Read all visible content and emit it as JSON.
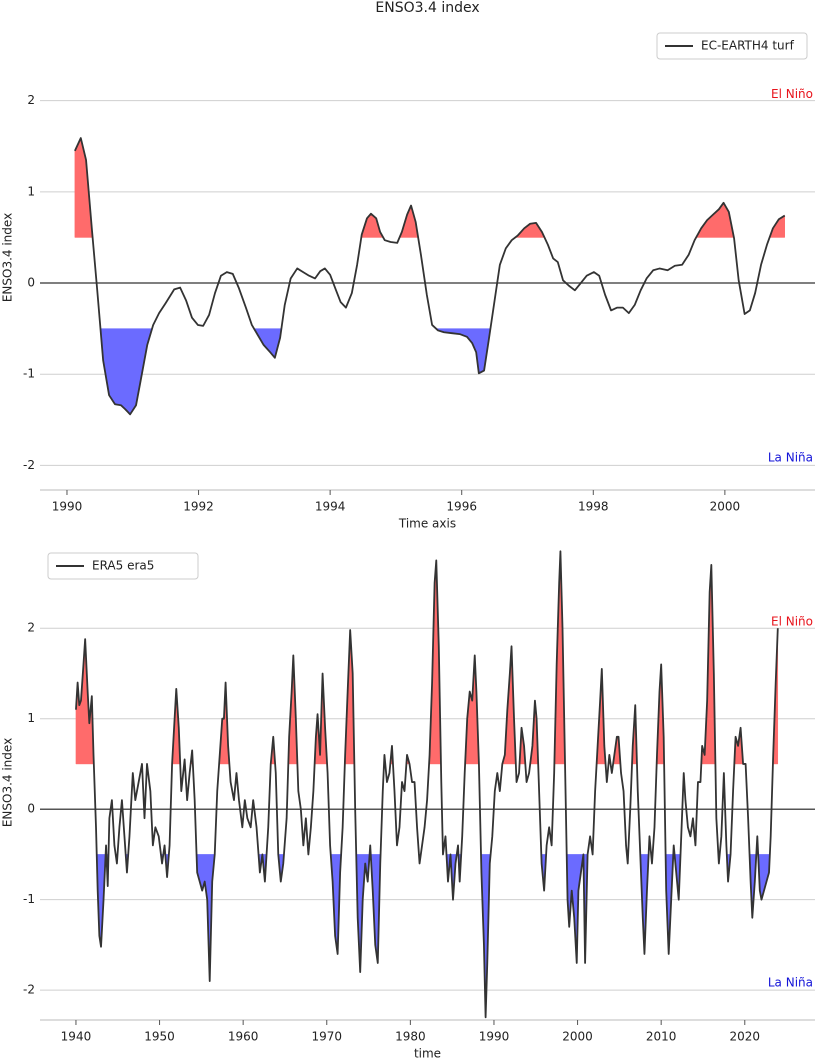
{
  "chart_data": [
    {
      "type": "line",
      "title": "ENSO3.4 index",
      "xlabel": "Time axis",
      "ylabel": "ENSO3.4 index",
      "xlim": [
        1989.59,
        2001.37
      ],
      "ylim": [
        -2.27,
        2.83
      ],
      "xticks": [
        1990,
        1992,
        1994,
        1996,
        1998,
        2000
      ],
      "yticks": [
        -2,
        -1,
        0,
        1,
        2
      ],
      "grid": true,
      "legend": "upper right",
      "el_nino_threshold": 0.5,
      "la_nina_threshold": -0.5,
      "el_nino_color": "#ff6b6b",
      "la_nina_color": "#6b6bff",
      "annotations": [
        {
          "text": "El Niño",
          "color": "#e8141c"
        },
        {
          "text": "La Niña",
          "color": "#1414d8"
        }
      ],
      "x": [
        1990.12,
        1990.21,
        1990.29,
        1990.38,
        1990.46,
        1990.55,
        1990.64,
        1990.73,
        1990.82,
        1990.88,
        1990.96,
        1991.05,
        1991.12,
        1991.22,
        1991.31,
        1991.4,
        1991.5,
        1991.63,
        1991.72,
        1991.81,
        1991.9,
        1991.99,
        1992.07,
        1992.16,
        1992.25,
        1992.34,
        1992.43,
        1992.52,
        1992.61,
        1992.72,
        1992.81,
        1992.9,
        1992.99,
        1993.09,
        1993.16,
        1993.24,
        1993.31,
        1993.4,
        1993.5,
        1993.59,
        1993.68,
        1993.77,
        1993.85,
        1993.92,
        1994.0,
        1994.09,
        1994.16,
        1994.24,
        1994.33,
        1994.41,
        1994.48,
        1994.56,
        1994.62,
        1994.7,
        1994.76,
        1994.83,
        1994.92,
        1995.02,
        1995.09,
        1995.17,
        1995.23,
        1995.3,
        1995.38,
        1995.47,
        1995.55,
        1995.64,
        1995.73,
        1995.85,
        1995.97,
        1996.08,
        1996.16,
        1996.22,
        1996.26,
        1996.34,
        1996.41,
        1996.5,
        1996.58,
        1996.67,
        1996.76,
        1996.85,
        1996.95,
        1997.04,
        1997.13,
        1997.22,
        1997.31,
        1997.39,
        1997.46,
        1997.54,
        1997.63,
        1997.72,
        1997.81,
        1997.9,
        1998.01,
        1998.09,
        1998.18,
        1998.27,
        1998.36,
        1998.45,
        1998.54,
        1998.63,
        1998.72,
        1998.81,
        1998.91,
        1999.01,
        1999.13,
        1999.24,
        1999.35,
        1999.45,
        1999.54,
        1999.64,
        1999.73,
        1999.82,
        1999.91,
        1999.98,
        2000.06,
        2000.14,
        2000.21,
        2000.3,
        2000.38,
        2000.46,
        2000.55,
        2000.64,
        2000.73,
        2000.82,
        2000.91
      ],
      "series": [
        {
          "name": "EC-EARTH4 turf",
          "color": "#333333",
          "values": [
            1.45,
            1.59,
            1.35,
            0.58,
            -0.08,
            -0.85,
            -1.23,
            -1.33,
            -1.34,
            -1.38,
            -1.44,
            -1.34,
            -1.07,
            -0.68,
            -0.46,
            -0.33,
            -0.22,
            -0.07,
            -0.05,
            -0.19,
            -0.38,
            -0.46,
            -0.47,
            -0.35,
            -0.11,
            0.08,
            0.12,
            0.1,
            -0.05,
            -0.27,
            -0.46,
            -0.57,
            -0.68,
            -0.76,
            -0.82,
            -0.6,
            -0.24,
            0.05,
            0.16,
            0.12,
            0.08,
            0.05,
            0.13,
            0.16,
            0.09,
            -0.08,
            -0.21,
            -0.27,
            -0.11,
            0.2,
            0.53,
            0.71,
            0.76,
            0.71,
            0.56,
            0.47,
            0.45,
            0.44,
            0.56,
            0.75,
            0.85,
            0.67,
            0.31,
            -0.13,
            -0.46,
            -0.52,
            -0.54,
            -0.55,
            -0.56,
            -0.59,
            -0.66,
            -0.76,
            -0.99,
            -0.96,
            -0.63,
            -0.19,
            0.2,
            0.38,
            0.47,
            0.52,
            0.6,
            0.65,
            0.66,
            0.56,
            0.42,
            0.27,
            0.23,
            0.03,
            -0.03,
            -0.08,
            0.0,
            0.08,
            0.12,
            0.08,
            -0.13,
            -0.3,
            -0.27,
            -0.27,
            -0.33,
            -0.24,
            -0.08,
            0.05,
            0.14,
            0.16,
            0.14,
            0.19,
            0.2,
            0.31,
            0.47,
            0.6,
            0.69,
            0.75,
            0.81,
            0.88,
            0.78,
            0.49,
            0.03,
            -0.34,
            -0.3,
            -0.11,
            0.2,
            0.42,
            0.6,
            0.7,
            0.74
          ]
        }
      ]
    },
    {
      "type": "line",
      "xlabel": "time",
      "ylabel": "ENSO3.4 index",
      "xlim": [
        1935.7,
        2028.4
      ],
      "ylim": [
        -2.33,
        2.92
      ],
      "xticks": [
        1940,
        1950,
        1960,
        1970,
        1980,
        1990,
        2000,
        2010,
        2020
      ],
      "yticks": [
        -2,
        -1,
        0,
        1,
        2
      ],
      "grid": true,
      "legend": "upper left",
      "el_nino_threshold": 0.5,
      "la_nina_threshold": -0.5,
      "el_nino_color": "#ff6b6b",
      "la_nina_color": "#6b6bff",
      "annotations": [
        {
          "text": "El Niño",
          "color": "#e8141c"
        },
        {
          "text": "La Niña",
          "color": "#1414d8"
        }
      ],
      "x": [
        1940.0,
        1940.2,
        1940.4,
        1940.6,
        1940.9,
        1941.1,
        1941.4,
        1941.6,
        1941.9,
        1942.1,
        1942.4,
        1942.6,
        1942.8,
        1943.0,
        1943.3,
        1943.6,
        1943.8,
        1944.0,
        1944.3,
        1944.6,
        1944.9,
        1945.2,
        1945.5,
        1945.8,
        1946.1,
        1946.4,
        1946.8,
        1947.1,
        1947.5,
        1947.9,
        1948.2,
        1948.5,
        1948.9,
        1949.2,
        1949.5,
        1949.9,
        1950.3,
        1950.6,
        1950.9,
        1951.2,
        1951.5,
        1951.8,
        1952.0,
        1952.3,
        1952.6,
        1953.0,
        1953.3,
        1953.6,
        1953.9,
        1954.2,
        1954.5,
        1954.8,
        1955.1,
        1955.4,
        1955.7,
        1956.0,
        1956.3,
        1956.6,
        1956.9,
        1957.2,
        1957.5,
        1957.7,
        1957.9,
        1958.2,
        1958.5,
        1958.9,
        1959.2,
        1959.5,
        1959.9,
        1960.2,
        1960.5,
        1960.9,
        1961.2,
        1961.6,
        1962.0,
        1962.3,
        1962.6,
        1963.0,
        1963.3,
        1963.6,
        1963.9,
        1964.2,
        1964.5,
        1964.8,
        1965.2,
        1965.5,
        1965.8,
        1966.0,
        1966.3,
        1966.6,
        1966.9,
        1967.2,
        1967.5,
        1967.8,
        1968.1,
        1968.4,
        1968.7,
        1968.9,
        1969.2,
        1969.5,
        1969.8,
        1970.1,
        1970.4,
        1970.7,
        1971.0,
        1971.3,
        1971.6,
        1971.9,
        1972.2,
        1972.5,
        1972.8,
        1973.1,
        1973.4,
        1973.7,
        1974.0,
        1974.3,
        1974.6,
        1974.9,
        1975.2,
        1975.5,
        1975.8,
        1976.1,
        1976.4,
        1976.7,
        1976.9,
        1977.2,
        1977.5,
        1977.8,
        1978.1,
        1978.4,
        1978.7,
        1979.0,
        1979.3,
        1979.6,
        1979.9,
        1980.2,
        1980.5,
        1980.8,
        1981.1,
        1981.4,
        1981.7,
        1982.0,
        1982.3,
        1982.6,
        1982.9,
        1983.1,
        1983.4,
        1983.7,
        1983.9,
        1984.2,
        1984.5,
        1984.8,
        1985.1,
        1985.4,
        1985.7,
        1985.9,
        1986.2,
        1986.5,
        1986.8,
        1987.1,
        1987.4,
        1987.7,
        1987.9,
        1988.2,
        1988.5,
        1988.8,
        1989.0,
        1989.2,
        1989.5,
        1989.8,
        1990.1,
        1990.4,
        1990.7,
        1991.0,
        1991.3,
        1991.6,
        1991.9,
        1992.1,
        1992.4,
        1992.7,
        1993.0,
        1993.3,
        1993.6,
        1993.9,
        1994.2,
        1994.6,
        1994.9,
        1995.1,
        1995.4,
        1995.7,
        1996.0,
        1996.3,
        1996.6,
        1996.9,
        1997.2,
        1997.5,
        1997.8,
        1997.95,
        1998.2,
        1998.5,
        1998.8,
        1999.0,
        1999.3,
        1999.6,
        1999.9,
        2000.1,
        2000.4,
        2000.7,
        2000.9,
        2001.2,
        2001.5,
        2001.8,
        2002.1,
        2002.4,
        2002.7,
        2002.9,
        2003.2,
        2003.5,
        2003.8,
        2004.1,
        2004.4,
        2004.7,
        2004.9,
        2005.2,
        2005.5,
        2005.8,
        2006.0,
        2006.3,
        2006.6,
        2006.9,
        2007.2,
        2007.5,
        2007.8,
        2008.0,
        2008.3,
        2008.6,
        2008.9,
        2009.2,
        2009.5,
        2009.8,
        2010.0,
        2010.3,
        2010.6,
        2010.9,
        2011.2,
        2011.5,
        2011.8,
        2012.1,
        2012.4,
        2012.7,
        2012.9,
        2013.2,
        2013.5,
        2013.8,
        2014.1,
        2014.4,
        2014.7,
        2014.9,
        2015.2,
        2015.5,
        2015.8,
        2016.0,
        2016.3,
        2016.6,
        2016.9,
        2017.2,
        2017.5,
        2017.8,
        2018.0,
        2018.3,
        2018.6,
        2018.9,
        2019.2,
        2019.5,
        2019.8,
        2020.1,
        2020.4,
        2020.7,
        2020.9,
        2021.2,
        2021.5,
        2021.8,
        2022.0,
        2022.3,
        2022.6,
        2022.9,
        2023.1,
        2023.4,
        2023.7,
        2023.95
      ],
      "series": [
        {
          "name": "ERA5 era5",
          "color": "#333333",
          "values": [
            1.1,
            1.4,
            1.15,
            1.2,
            1.6,
            1.88,
            1.3,
            0.95,
            1.25,
            0.6,
            -0.2,
            -0.9,
            -1.4,
            -1.52,
            -1.0,
            -0.4,
            -0.85,
            -0.1,
            0.1,
            -0.4,
            -0.6,
            -0.2,
            0.1,
            -0.3,
            -0.7,
            -0.3,
            0.4,
            0.1,
            0.3,
            0.5,
            -0.1,
            0.5,
            0.2,
            -0.4,
            -0.2,
            -0.3,
            -0.6,
            -0.4,
            -0.75,
            -0.4,
            0.5,
            1.0,
            1.33,
            0.9,
            0.2,
            0.55,
            0.1,
            0.4,
            0.65,
            0.1,
            -0.7,
            -0.8,
            -0.9,
            -0.8,
            -1.0,
            -1.9,
            -0.8,
            -0.5,
            0.2,
            0.6,
            1.0,
            1.0,
            1.4,
            0.7,
            0.3,
            0.1,
            0.4,
            0.1,
            -0.2,
            0.1,
            -0.1,
            -0.2,
            0.1,
            -0.2,
            -0.7,
            -0.5,
            -0.8,
            -0.2,
            0.5,
            0.8,
            0.4,
            -0.5,
            -0.8,
            -0.6,
            -0.1,
            0.8,
            1.3,
            1.7,
            1.0,
            0.2,
            0.0,
            -0.4,
            -0.1,
            -0.5,
            -0.2,
            0.2,
            0.8,
            1.05,
            0.6,
            1.5,
            0.9,
            0.4,
            -0.4,
            -0.8,
            -1.4,
            -1.6,
            -0.7,
            -0.2,
            0.6,
            1.3,
            1.98,
            1.5,
            0.0,
            -1.2,
            -1.8,
            -1.0,
            -0.6,
            -0.8,
            -0.4,
            -0.9,
            -1.5,
            -1.7,
            -0.6,
            0.2,
            0.6,
            0.3,
            0.4,
            0.7,
            0.2,
            -0.4,
            -0.2,
            0.3,
            0.2,
            0.6,
            0.5,
            0.3,
            0.3,
            -0.2,
            -0.6,
            -0.4,
            -0.2,
            0.1,
            0.6,
            1.4,
            2.5,
            2.75,
            1.8,
            0.3,
            -0.5,
            -0.3,
            -0.8,
            -0.5,
            -1.0,
            -0.6,
            -0.4,
            -0.8,
            -0.3,
            0.4,
            1.0,
            1.3,
            1.2,
            1.7,
            1.3,
            0.5,
            -0.7,
            -1.5,
            -2.3,
            -1.7,
            -0.6,
            -0.3,
            0.2,
            0.4,
            0.2,
            0.5,
            0.6,
            1.1,
            1.5,
            1.8,
            1.0,
            0.3,
            0.4,
            0.9,
            0.7,
            0.3,
            0.4,
            0.7,
            1.2,
            1.0,
            0.2,
            -0.6,
            -0.9,
            -0.4,
            -0.2,
            -0.4,
            0.4,
            1.6,
            2.5,
            2.85,
            2.0,
            0.5,
            -1.0,
            -1.3,
            -0.9,
            -1.2,
            -1.7,
            -0.9,
            -0.7,
            -0.5,
            -1.7,
            -0.5,
            -0.3,
            -0.5,
            0.2,
            0.7,
            1.2,
            1.55,
            0.7,
            0.3,
            0.6,
            0.4,
            0.6,
            0.8,
            0.8,
            0.4,
            0.2,
            -0.4,
            -0.6,
            0.0,
            0.7,
            1.15,
            0.2,
            -0.5,
            -1.2,
            -1.6,
            -0.9,
            -0.3,
            -0.6,
            -0.2,
            0.6,
            1.3,
            1.6,
            0.8,
            -0.9,
            -1.6,
            -1.0,
            -0.4,
            -0.7,
            -1.0,
            -0.3,
            0.4,
            0.1,
            -0.2,
            -0.3,
            -0.1,
            -0.4,
            0.3,
            0.3,
            0.7,
            0.6,
            1.2,
            2.4,
            2.7,
            1.5,
            -0.1,
            -0.6,
            -0.3,
            0.4,
            -0.4,
            -0.8,
            -0.5,
            0.2,
            0.8,
            0.7,
            0.9,
            0.5,
            0.5,
            -0.1,
            -0.8,
            -1.2,
            -0.8,
            -0.3,
            -0.9,
            -1.0,
            -0.9,
            -0.8,
            -0.7,
            -0.3,
            0.6,
            1.4,
            2.0
          ]
        }
      ]
    }
  ]
}
